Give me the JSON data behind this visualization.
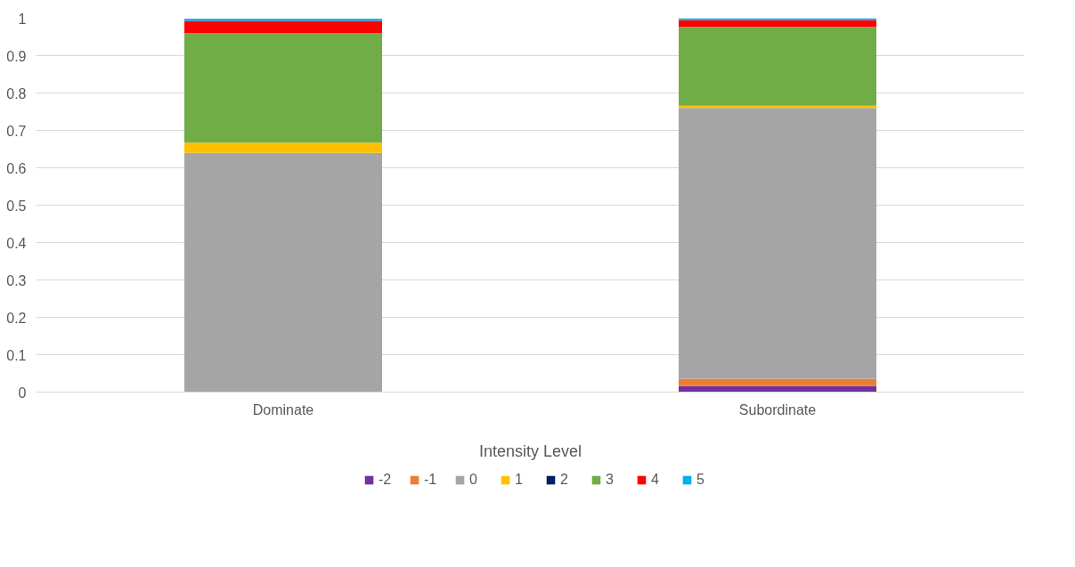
{
  "chart_data": {
    "type": "bar",
    "stacked": true,
    "xlabel": "Intensity Level",
    "categories": [
      "Dominate",
      "Subordinate"
    ],
    "series": [
      {
        "name": "-2",
        "color": "#7030a0",
        "values": [
          0,
          0.016
        ]
      },
      {
        "name": "-1",
        "color": "#ed7d31",
        "values": [
          0,
          0.02
        ]
      },
      {
        "name": "0",
        "color": "#a5a5a5",
        "values": [
          0.64,
          0.724
        ]
      },
      {
        "name": "1",
        "color": "#ffc000",
        "values": [
          0.027,
          0.006
        ]
      },
      {
        "name": "2",
        "color": "#002060",
        "values": [
          0,
          0
        ]
      },
      {
        "name": "3",
        "color": "#70ad47",
        "values": [
          0.293,
          0.211
        ]
      },
      {
        "name": "4",
        "color": "#ff0000",
        "values": [
          0.033,
          0.018
        ]
      },
      {
        "name": "5",
        "color": "#00b0f0",
        "values": [
          0.006,
          0.005
        ]
      }
    ],
    "ylim": [
      0,
      1
    ],
    "yticks": [
      0,
      0.1,
      0.2,
      0.3,
      0.4,
      0.5,
      0.6,
      0.7,
      0.8,
      0.9,
      1
    ],
    "grid": "y",
    "legend": "bottom"
  }
}
